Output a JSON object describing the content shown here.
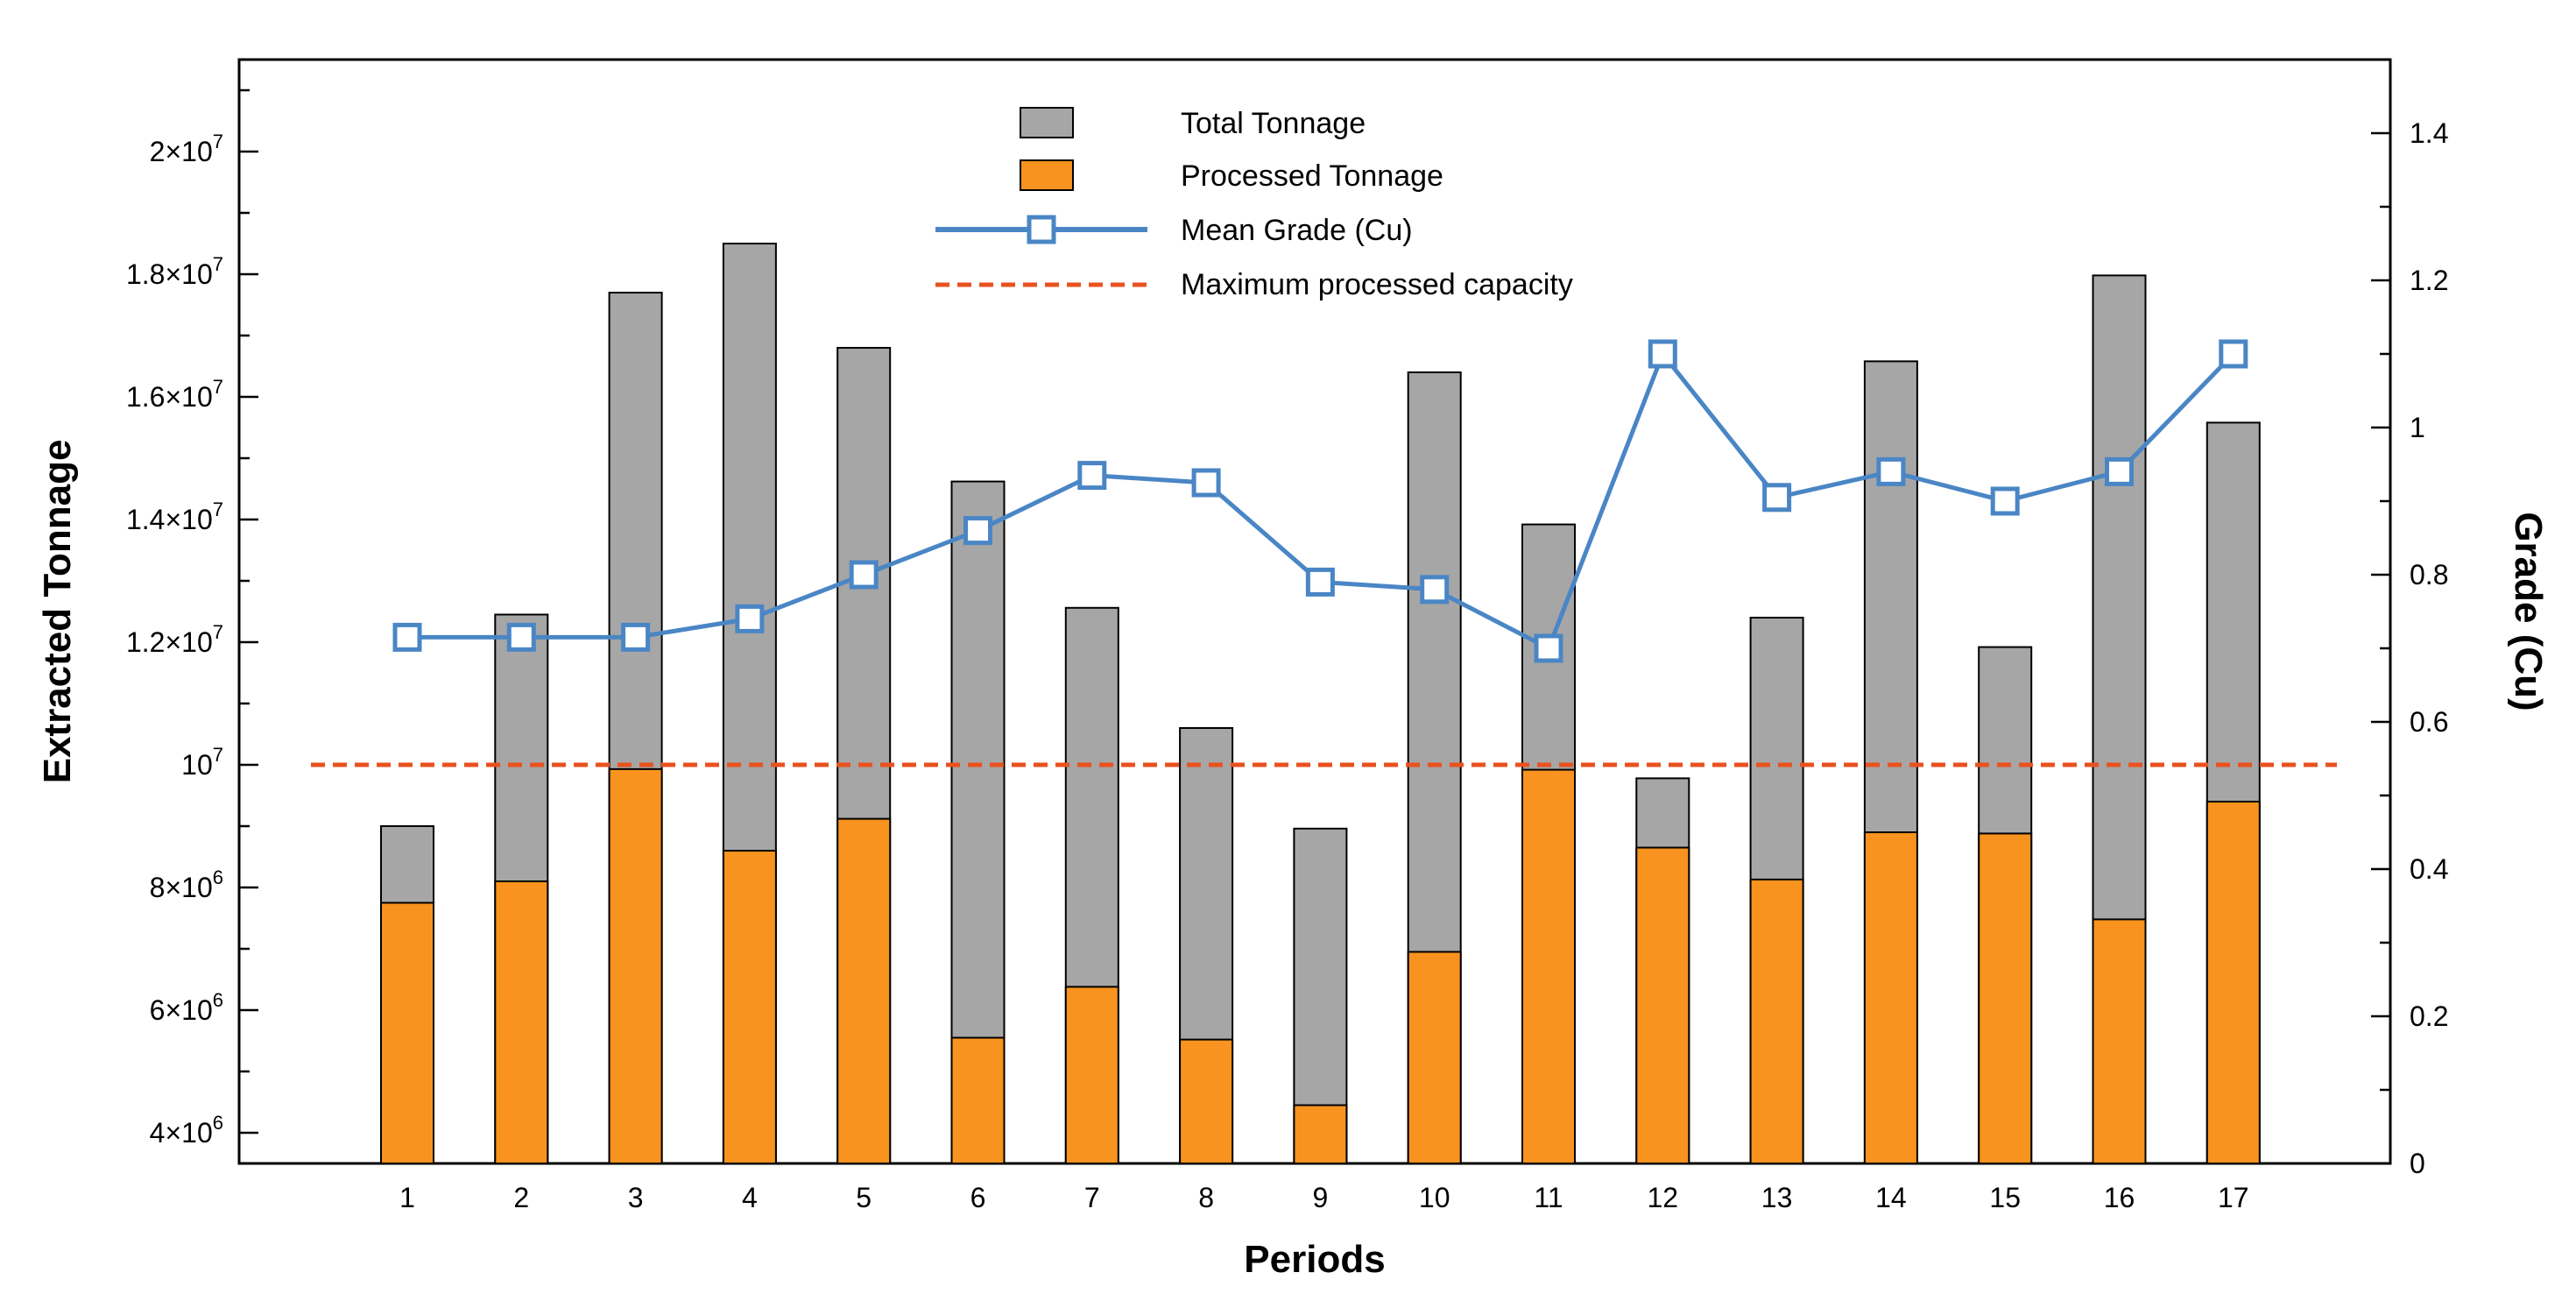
{
  "chart_data": {
    "type": "bar",
    "xlabel": "Periods",
    "ylabel": "Extracted Tonnage",
    "y2label": "Grade (Cu)",
    "categories": [
      "1",
      "2",
      "3",
      "4",
      "5",
      "6",
      "7",
      "8",
      "9",
      "10",
      "11",
      "12",
      "13",
      "14",
      "15",
      "16",
      "17"
    ],
    "series": [
      {
        "name": "Total Tonnage",
        "type": "bar",
        "color": "#a6a6a6",
        "values": [
          9000000,
          12450000,
          17700000,
          18500000,
          16800000,
          14620000,
          12560000,
          10600000,
          8960000,
          16400000,
          13920000,
          9780000,
          12400000,
          16580000,
          11920000,
          17980000,
          15580000
        ]
      },
      {
        "name": "Processed Tonnage",
        "type": "bar",
        "color": "#f7931e",
        "values": [
          7750000,
          8100000,
          9930000,
          8600000,
          9120000,
          5550000,
          6380000,
          5520000,
          4450000,
          6950000,
          9920000,
          8650000,
          8130000,
          8900000,
          8880000,
          7480000,
          9400000
        ]
      },
      {
        "name": "Mean Grade (Cu)",
        "type": "line",
        "axis": "right",
        "color": "#4a86c5",
        "values": [
          0.715,
          0.715,
          0.715,
          0.74,
          0.8,
          0.86,
          0.935,
          0.925,
          0.79,
          0.78,
          0.7,
          1.1,
          0.905,
          0.94,
          0.9,
          0.94,
          1.1
        ]
      },
      {
        "name": "Maximum processed capacity",
        "type": "hline",
        "color": "#e8521f",
        "value": 10000000
      }
    ],
    "ylim": [
      3500000,
      21500000
    ],
    "y2lim": [
      0,
      1.5
    ],
    "y_ticks": [
      {
        "value": 4000000,
        "mantissa": "4×10",
        "exp": "6"
      },
      {
        "value": 6000000,
        "mantissa": "6×10",
        "exp": "6"
      },
      {
        "value": 8000000,
        "mantissa": "8×10",
        "exp": "6"
      },
      {
        "value": 10000000,
        "mantissa": "10",
        "exp": "7"
      },
      {
        "value": 12000000,
        "mantissa": "1.2×10",
        "exp": "7"
      },
      {
        "value": 14000000,
        "mantissa": "1.4×10",
        "exp": "7"
      },
      {
        "value": 16000000,
        "mantissa": "1.6×10",
        "exp": "7"
      },
      {
        "value": 18000000,
        "mantissa": "1.8×10",
        "exp": "7"
      },
      {
        "value": 20000000,
        "mantissa": "2×10",
        "exp": "7"
      }
    ],
    "y2_ticks": [
      "0",
      "0.2",
      "0.4",
      "0.6",
      "0.8",
      "1",
      "1.2",
      "1.4"
    ],
    "legend_position": "top-center"
  }
}
